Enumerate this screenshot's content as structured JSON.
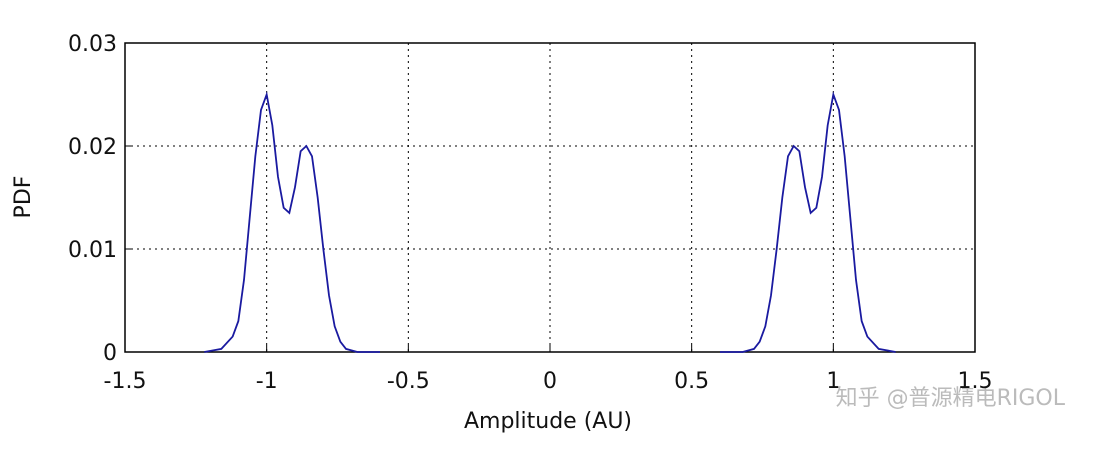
{
  "chart_data": {
    "type": "line",
    "xlabel": "Amplitude (AU)",
    "ylabel": "PDF",
    "annotation": "知乎 @普源精电RIGOL",
    "xlim": [
      -1.5,
      1.5
    ],
    "xticks": [
      -1.5,
      -1,
      -0.5,
      0,
      0.5,
      1,
      1.5
    ],
    "ylim": [
      0,
      0.03
    ],
    "yticks": [
      0,
      0.01,
      0.02,
      0.03
    ],
    "grid": true,
    "x": [
      -1.22,
      -1.16,
      -1.12,
      -1.1,
      -1.08,
      -1.06,
      -1.04,
      -1.02,
      -1,
      -0.98,
      -0.96,
      -0.94,
      -0.92,
      -0.9,
      -0.88,
      -0.86,
      -0.84,
      -0.82,
      -0.8,
      -0.78,
      -0.76,
      -0.74,
      -0.72,
      -0.68,
      -0.6,
      0,
      0.6,
      0.68,
      0.72,
      0.74,
      0.76,
      0.78,
      0.8,
      0.82,
      0.84,
      0.86,
      0.88,
      0.9,
      0.92,
      0.94,
      0.96,
      0.98,
      1,
      1.02,
      1.04,
      1.06,
      1.08,
      1.1,
      1.12,
      1.16,
      1.22
    ],
    "series": [
      {
        "color": "#1a1aa0",
        "values": [
          0,
          0.0003,
          0.0015,
          0.003,
          0.007,
          0.013,
          0.019,
          0.0235,
          0.025,
          0.022,
          0.017,
          0.014,
          0.0135,
          0.016,
          0.0195,
          0.02,
          0.019,
          0.015,
          0.01,
          0.0055,
          0.0025,
          0.001,
          0.0003,
          0,
          0,
          null,
          0,
          0,
          0.0003,
          0.001,
          0.0025,
          0.0055,
          0.01,
          0.015,
          0.019,
          0.02,
          0.0195,
          0.016,
          0.0135,
          0.014,
          0.017,
          0.022,
          0.025,
          0.0235,
          0.019,
          0.013,
          0.007,
          0.003,
          0.0015,
          0.0003,
          0
        ]
      }
    ]
  }
}
